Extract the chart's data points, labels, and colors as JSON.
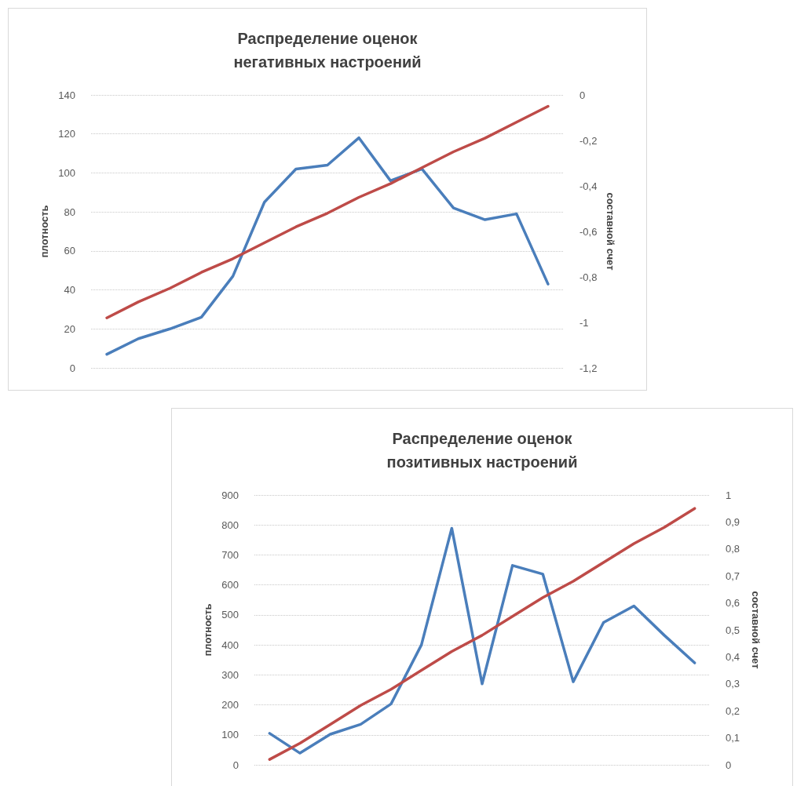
{
  "chart_data": [
    {
      "type": "line",
      "title": "Распределение оценок\nнегативных настроений",
      "ylabel": "плотность",
      "y2label": "составной счет",
      "categories": [
        null,
        null,
        null,
        null,
        null,
        null,
        null,
        null,
        null,
        null,
        null,
        null,
        null,
        null,
        null
      ],
      "series": [
        {
          "color": "#4a7ebb",
          "values": [
            7,
            15,
            20,
            26,
            47,
            85,
            102,
            104,
            118,
            96,
            102,
            82,
            76,
            79,
            43
          ]
        },
        {
          "color": "#be4b48",
          "axis": "y2",
          "values": [
            -0.98,
            -0.91,
            -0.85,
            -0.78,
            -0.72,
            -0.65,
            -0.58,
            -0.52,
            -0.45,
            -0.39,
            -0.32,
            -0.25,
            -0.19,
            -0.12,
            -0.05
          ]
        }
      ],
      "ylim": [
        0,
        140
      ],
      "yticks": [
        0,
        20,
        40,
        60,
        80,
        100,
        120,
        140
      ],
      "y2lim": [
        -1.2,
        0
      ],
      "y2ticks": [
        {
          "value": -1.2,
          "label": "-1,2"
        },
        -1,
        {
          "value": -0.8,
          "label": "-0,8"
        },
        {
          "value": -0.6,
          "label": "-0,6"
        },
        {
          "value": -0.4,
          "label": "-0,4"
        },
        {
          "value": -0.2,
          "label": "-0,2"
        },
        0
      ],
      "grid": "y",
      "tick_labels": "y"
    },
    {
      "type": "line",
      "title": "Распределение оценок\nпозитивных настроений",
      "ylabel": "плотность",
      "y2label": "составной счет",
      "categories": [
        null,
        null,
        null,
        null,
        null,
        null,
        null,
        null,
        null,
        null,
        null,
        null,
        null,
        null,
        null
      ],
      "series": [
        {
          "color": "#4a7ebb",
          "values": [
            105,
            39,
            102,
            135,
            203,
            400,
            789,
            270,
            665,
            636,
            277,
            475,
            530,
            432,
            340
          ]
        },
        {
          "color": "#be4b48",
          "axis": "y2",
          "values": [
            0.02,
            0.08,
            0.15,
            0.22,
            0.28,
            0.35,
            0.42,
            0.48,
            0.55,
            0.62,
            0.68,
            0.75,
            0.82,
            0.88,
            0.95
          ]
        }
      ],
      "ylim": [
        0,
        900
      ],
      "yticks": [
        0,
        100,
        200,
        300,
        400,
        500,
        600,
        700,
        800,
        900
      ],
      "y2lim": [
        0,
        1
      ],
      "y2ticks": [
        0,
        {
          "value": 0.1,
          "label": "0,1"
        },
        {
          "value": 0.2,
          "label": "0,2"
        },
        {
          "value": 0.3,
          "label": "0,3"
        },
        {
          "value": 0.4,
          "label": "0,4"
        },
        {
          "value": 0.5,
          "label": "0,5"
        },
        {
          "value": 0.6,
          "label": "0,6"
        },
        {
          "value": 0.7,
          "label": "0,7"
        },
        {
          "value": 0.8,
          "label": "0,8"
        },
        {
          "value": 0.9,
          "label": "0,9"
        },
        1
      ],
      "grid": "y",
      "tick_labels": "y"
    }
  ]
}
